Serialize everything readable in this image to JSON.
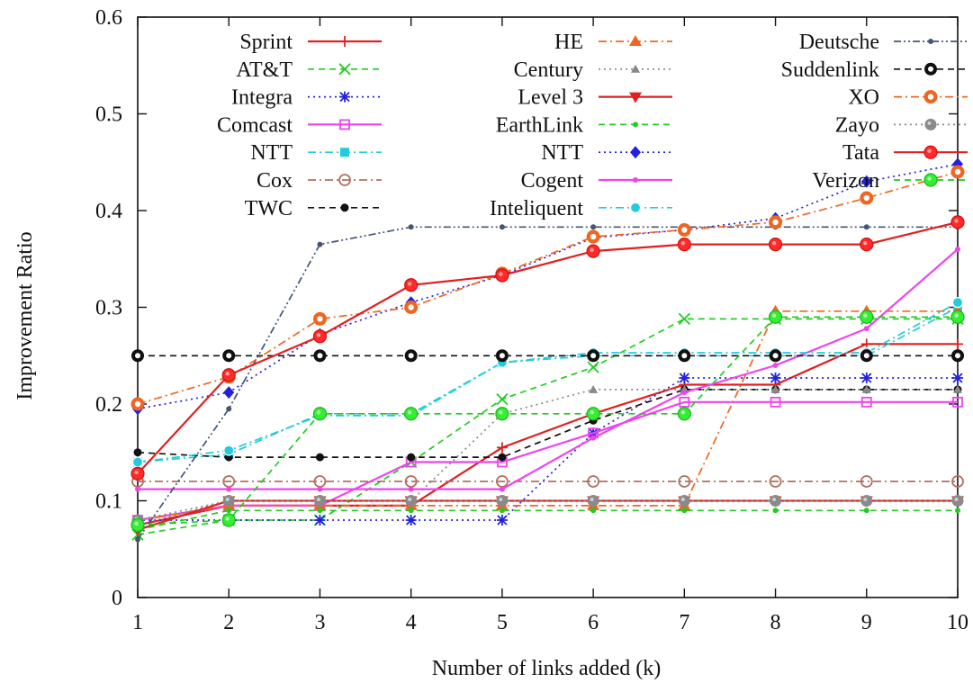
{
  "chart_data": {
    "type": "line",
    "xlabel": "Number of links added (k)",
    "ylabel": "Improvement Ratio",
    "x": [
      1,
      2,
      3,
      4,
      5,
      6,
      7,
      8,
      9,
      10
    ],
    "xlim": [
      1,
      10
    ],
    "ylim": [
      0,
      0.6
    ],
    "xticks": [
      "1",
      "2",
      "3",
      "4",
      "5",
      "6",
      "7",
      "8",
      "9",
      "10"
    ],
    "yticks": [
      "0",
      "0.1",
      "0.2",
      "0.3",
      "0.4",
      "0.5",
      "0.6"
    ],
    "grid": false,
    "legend_position": "top, inside plot, three columns",
    "series": [
      {
        "name": "Sprint",
        "color": "#e02020",
        "dash": "solid",
        "marker": "plus",
        "values": [
          0.075,
          0.095,
          0.095,
          0.095,
          0.155,
          0.19,
          0.22,
          0.22,
          0.262,
          0.262
        ]
      },
      {
        "name": "AT&T",
        "color": "#22cc22",
        "dash": "dashed",
        "marker": "x",
        "values": [
          0.065,
          0.08,
          0.08,
          0.14,
          0.205,
          0.238,
          0.288,
          0.288,
          0.288,
          0.288
        ]
      },
      {
        "name": "Integra",
        "color": "#2222dd",
        "dash": "dotted",
        "marker": "star",
        "values": [
          0.08,
          0.08,
          0.08,
          0.08,
          0.08,
          0.17,
          0.227,
          0.227,
          0.227,
          0.227
        ]
      },
      {
        "name": "Comcast",
        "color": "#ee44ee",
        "dash": "solid",
        "marker": "square-open",
        "values": [
          0.08,
          0.095,
          0.095,
          0.14,
          0.14,
          0.17,
          0.202,
          0.202,
          0.202,
          0.202
        ]
      },
      {
        "name": "NTT",
        "color": "#22ccdd",
        "dash": "dashdot",
        "marker": "square-filled",
        "values": [
          0.14,
          0.148,
          0.19,
          0.19,
          0.243,
          0.25,
          0.25,
          0.25,
          0.25,
          0.3
        ]
      },
      {
        "name": "Cox",
        "color": "#b07060",
        "dash": "dashdot",
        "marker": "circle-open",
        "values": [
          0.12,
          0.12,
          0.12,
          0.12,
          0.12,
          0.12,
          0.12,
          0.12,
          0.12,
          0.12
        ]
      },
      {
        "name": "TWC",
        "color": "#111111",
        "dash": "dashed",
        "marker": "dot",
        "values": [
          0.15,
          0.145,
          0.145,
          0.145,
          0.145,
          0.183,
          0.215,
          0.215,
          0.215,
          0.215
        ]
      },
      {
        "name": "HE",
        "color": "#ee6622",
        "dash": "dashdot",
        "marker": "triangle",
        "values": [
          0.08,
          0.095,
          0.095,
          0.095,
          0.095,
          0.095,
          0.095,
          0.296,
          0.296,
          0.296
        ]
      },
      {
        "name": "Century",
        "color": "#888888",
        "dash": "dotted",
        "marker": "triangle-small",
        "values": [
          0.075,
          0.1,
          0.1,
          0.1,
          0.19,
          0.215,
          0.215,
          0.215,
          0.215,
          0.215
        ]
      },
      {
        "name": "Level 3",
        "color": "#e02020",
        "dash": "solid",
        "marker": "triangle-down",
        "values": [
          0.07,
          0.1,
          0.1,
          0.1,
          0.1,
          0.1,
          0.1,
          0.1,
          0.1,
          0.1
        ]
      },
      {
        "name": "EarthLink",
        "color": "#22cc22",
        "dash": "dashed",
        "marker": "dot-small",
        "values": [
          0.07,
          0.09,
          0.09,
          0.09,
          0.09,
          0.09,
          0.09,
          0.09,
          0.09,
          0.09
        ]
      },
      {
        "name": "NTT",
        "color": "#2222dd",
        "dash": "dotted",
        "marker": "diamond",
        "values": [
          0.195,
          0.212,
          0.272,
          0.305,
          0.333,
          0.372,
          0.38,
          0.392,
          0.43,
          0.448
        ]
      },
      {
        "name": "Cogent",
        "color": "#ee44ee",
        "dash": "solid",
        "marker": "dot-small",
        "values": [
          0.112,
          0.112,
          0.112,
          0.112,
          0.112,
          0.165,
          0.212,
          0.24,
          0.278,
          0.36
        ]
      },
      {
        "name": "Inteliquent",
        "color": "#22ccdd",
        "dash": "dashdot",
        "marker": "circle-filled",
        "values": [
          0.14,
          0.152,
          0.188,
          0.188,
          0.243,
          0.253,
          0.253,
          0.253,
          0.253,
          0.305
        ]
      },
      {
        "name": "Deutsche",
        "color": "#445577",
        "dash": "dashdotdot",
        "marker": "dot-small",
        "values": [
          0.06,
          0.195,
          0.365,
          0.383,
          0.383,
          0.383,
          0.383,
          0.383,
          0.383,
          0.383
        ]
      },
      {
        "name": "Suddenlink",
        "color": "#111111",
        "dash": "dashed",
        "marker": "circle-bold",
        "values": [
          0.25,
          0.25,
          0.25,
          0.25,
          0.25,
          0.25,
          0.25,
          0.25,
          0.25,
          0.25
        ]
      },
      {
        "name": "XO",
        "color": "#ee6622",
        "dash": "dashdot",
        "marker": "circle-open-bold",
        "values": [
          0.2,
          0.228,
          0.288,
          0.3,
          0.335,
          0.373,
          0.38,
          0.388,
          0.413,
          0.44
        ]
      },
      {
        "name": "Zayo",
        "color": "#888888",
        "dash": "dotted",
        "marker": "circle-gray",
        "values": [
          0.08,
          0.1,
          0.1,
          0.1,
          0.1,
          0.1,
          0.1,
          0.1,
          0.1,
          0.1
        ]
      },
      {
        "name": "Tata",
        "color": "#e02020",
        "dash": "solid",
        "marker": "circle-red",
        "values": [
          0.128,
          0.23,
          0.27,
          0.323,
          0.333,
          0.358,
          0.365,
          0.365,
          0.365,
          0.388
        ]
      },
      {
        "name": "Verizon",
        "color": "#22cc22",
        "dash": "dashed",
        "marker": "circle-green",
        "values": [
          0.075,
          0.08,
          0.19,
          0.19,
          0.19,
          0.19,
          0.19,
          0.29,
          0.29,
          0.29
        ]
      }
    ]
  }
}
